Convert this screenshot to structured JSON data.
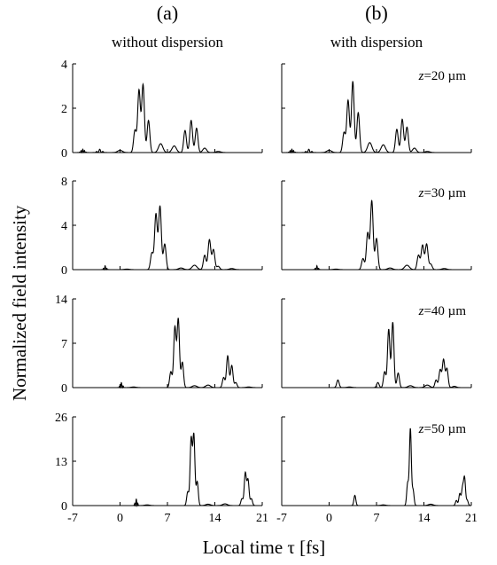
{
  "figure": {
    "columns": [
      {
        "label": "(a)",
        "subtitle": "without dispersion"
      },
      {
        "label": "(b)",
        "subtitle": "with dispersion"
      }
    ],
    "xlabel": "Local time τ [fs]",
    "ylabel": "Normalized field intensity"
  },
  "chart_data": [
    {
      "type": "line",
      "panel": "a1",
      "column": "without dispersion",
      "annotation": "",
      "xlim": [
        -7,
        21
      ],
      "xticks": [],
      "ylim": [
        0,
        4
      ],
      "yticks": [
        0,
        2,
        4
      ],
      "pulses": [
        [
          -5.5,
          0.15,
          0.35,
          3
        ],
        [
          -3,
          0.15,
          0.45,
          2
        ],
        [
          0,
          0.1,
          0.5,
          1
        ],
        [
          2.2,
          1.0,
          0.28,
          1
        ],
        [
          2.8,
          2.8,
          0.28,
          1
        ],
        [
          3.4,
          3.05,
          0.28,
          1
        ],
        [
          4.2,
          1.45,
          0.28,
          1
        ],
        [
          6,
          0.4,
          0.45,
          1
        ],
        [
          8,
          0.3,
          0.45,
          1
        ],
        [
          9.6,
          1.0,
          0.28,
          1
        ],
        [
          10.5,
          1.45,
          0.28,
          1
        ],
        [
          11.3,
          1.1,
          0.28,
          1
        ],
        [
          12.5,
          0.2,
          0.4,
          1
        ],
        [
          14.5,
          0.05,
          0.5,
          1
        ]
      ]
    },
    {
      "type": "line",
      "panel": "b1",
      "column": "with dispersion",
      "annotation": "z=20 µm",
      "xlim": [
        -7,
        21
      ],
      "xticks": [],
      "ylim": [
        0,
        4
      ],
      "yticks": [],
      "pulses": [
        [
          -5.5,
          0.15,
          0.35,
          3
        ],
        [
          -3,
          0.15,
          0.45,
          2
        ],
        [
          0,
          0.1,
          0.5,
          1
        ],
        [
          2.2,
          0.9,
          0.28,
          1
        ],
        [
          2.8,
          2.35,
          0.28,
          1
        ],
        [
          3.5,
          3.2,
          0.28,
          1
        ],
        [
          4.3,
          1.8,
          0.28,
          1
        ],
        [
          6,
          0.45,
          0.45,
          1
        ],
        [
          8,
          0.35,
          0.45,
          1
        ],
        [
          10,
          1.05,
          0.28,
          1
        ],
        [
          10.8,
          1.5,
          0.28,
          1
        ],
        [
          11.5,
          1.15,
          0.28,
          1
        ],
        [
          12.6,
          0.2,
          0.4,
          1
        ],
        [
          14.5,
          0.05,
          0.5,
          1
        ]
      ]
    },
    {
      "type": "line",
      "panel": "a2",
      "column": "without dispersion",
      "annotation": "",
      "xlim": [
        -7,
        21
      ],
      "xticks": [],
      "ylim": [
        0,
        8
      ],
      "yticks": [
        0,
        4,
        8
      ],
      "pulses": [
        [
          -2.2,
          0.35,
          0.25,
          2
        ],
        [
          1,
          0.05,
          0.5,
          1
        ],
        [
          4.7,
          1.5,
          0.28,
          1
        ],
        [
          5.3,
          5.0,
          0.28,
          1
        ],
        [
          5.9,
          5.7,
          0.28,
          1
        ],
        [
          6.6,
          2.3,
          0.28,
          1
        ],
        [
          9,
          0.15,
          0.5,
          1
        ],
        [
          11,
          0.4,
          0.5,
          1
        ],
        [
          12.5,
          1.3,
          0.28,
          1
        ],
        [
          13.2,
          2.7,
          0.28,
          1
        ],
        [
          13.8,
          1.8,
          0.28,
          1
        ],
        [
          14.5,
          0.3,
          0.3,
          1
        ],
        [
          16.5,
          0.1,
          0.5,
          1
        ]
      ]
    },
    {
      "type": "line",
      "panel": "b2",
      "column": "with dispersion",
      "annotation": "z=30 µm",
      "xlim": [
        -7,
        21
      ],
      "xticks": [],
      "ylim": [
        0,
        8
      ],
      "yticks": [],
      "pulses": [
        [
          -1.8,
          0.35,
          0.25,
          2
        ],
        [
          1,
          0.05,
          0.5,
          1
        ],
        [
          5,
          1.0,
          0.28,
          1
        ],
        [
          5.7,
          3.3,
          0.28,
          1
        ],
        [
          6.3,
          6.2,
          0.28,
          1
        ],
        [
          7,
          2.8,
          0.28,
          1
        ],
        [
          9,
          0.15,
          0.5,
          1
        ],
        [
          11.5,
          0.4,
          0.5,
          1
        ],
        [
          13.2,
          1.3,
          0.28,
          1
        ],
        [
          13.8,
          2.2,
          0.28,
          1
        ],
        [
          14.4,
          2.3,
          0.28,
          1
        ],
        [
          15,
          0.5,
          0.3,
          1
        ],
        [
          17,
          0.1,
          0.5,
          1
        ]
      ]
    },
    {
      "type": "line",
      "panel": "a3",
      "column": "without dispersion",
      "annotation": "",
      "xlim": [
        -7,
        21
      ],
      "xticks": [],
      "ylim": [
        0,
        14
      ],
      "yticks": [
        0,
        7,
        14
      ],
      "pulses": [
        [
          0.2,
          0.8,
          0.25,
          2
        ],
        [
          2,
          0.1,
          0.5,
          1
        ],
        [
          7.5,
          2.5,
          0.25,
          1
        ],
        [
          8.1,
          9.5,
          0.25,
          1
        ],
        [
          8.6,
          10.8,
          0.25,
          1
        ],
        [
          9.2,
          4.0,
          0.25,
          1
        ],
        [
          11,
          0.3,
          0.5,
          1
        ],
        [
          13,
          0.4,
          0.5,
          1
        ],
        [
          15.3,
          1.6,
          0.25,
          1
        ],
        [
          15.9,
          5.0,
          0.25,
          1
        ],
        [
          16.5,
          3.5,
          0.25,
          1
        ],
        [
          17.1,
          0.8,
          0.25,
          1
        ],
        [
          19,
          0.1,
          0.5,
          1
        ]
      ]
    },
    {
      "type": "line",
      "panel": "b3",
      "column": "with dispersion",
      "annotation": "z=40 µm",
      "xlim": [
        -7,
        21
      ],
      "xticks": [],
      "ylim": [
        0,
        14
      ],
      "yticks": [],
      "pulses": [
        [
          1.3,
          1.2,
          0.25,
          1
        ],
        [
          3,
          0.1,
          0.5,
          1
        ],
        [
          7.2,
          0.8,
          0.25,
          1
        ],
        [
          8.2,
          2.5,
          0.25,
          1
        ],
        [
          8.8,
          9.2,
          0.25,
          1
        ],
        [
          9.4,
          10.3,
          0.25,
          1
        ],
        [
          10.2,
          2.3,
          0.25,
          1
        ],
        [
          12,
          0.3,
          0.5,
          1
        ],
        [
          14.5,
          0.4,
          0.5,
          1
        ],
        [
          15.8,
          1.2,
          0.25,
          1
        ],
        [
          16.4,
          2.8,
          0.25,
          1
        ],
        [
          16.9,
          4.4,
          0.25,
          1
        ],
        [
          17.4,
          3.0,
          0.25,
          1
        ],
        [
          18.5,
          0.2,
          0.4,
          1
        ]
      ]
    },
    {
      "type": "line",
      "panel": "a4",
      "column": "without dispersion",
      "annotation": "",
      "xlim": [
        -7,
        21
      ],
      "xticks": [
        -7,
        0,
        7,
        14,
        21
      ],
      "ylim": [
        0,
        26
      ],
      "yticks": [
        0,
        13,
        26
      ],
      "pulses": [
        [
          2.4,
          2.0,
          0.22,
          2
        ],
        [
          4,
          0.2,
          0.5,
          1
        ],
        [
          10,
          4.0,
          0.22,
          1
        ],
        [
          10.5,
          19.5,
          0.22,
          1
        ],
        [
          10.9,
          20.5,
          0.22,
          1
        ],
        [
          11.4,
          7.0,
          0.22,
          1
        ],
        [
          13,
          0.4,
          0.5,
          1
        ],
        [
          15.5,
          0.5,
          0.5,
          1
        ],
        [
          18,
          2.0,
          0.22,
          1
        ],
        [
          18.5,
          9.5,
          0.22,
          1
        ],
        [
          18.9,
          7.5,
          0.22,
          1
        ],
        [
          19.4,
          2.0,
          0.22,
          1
        ]
      ]
    },
    {
      "type": "line",
      "panel": "b4",
      "column": "with dispersion",
      "annotation": "z=50 µm",
      "xlim": [
        -7,
        21
      ],
      "xticks": [
        -7,
        0,
        7,
        14,
        21
      ],
      "ylim": [
        0,
        26
      ],
      "yticks": [],
      "pulses": [
        [
          3.8,
          3.0,
          0.2,
          1
        ],
        [
          8,
          0.2,
          0.5,
          1
        ],
        [
          11.6,
          6.5,
          0.2,
          1
        ],
        [
          12,
          22.5,
          0.2,
          1
        ],
        [
          12.4,
          4.5,
          0.2,
          1
        ],
        [
          15,
          0.4,
          0.5,
          1
        ],
        [
          18.8,
          1.5,
          0.2,
          1
        ],
        [
          19.3,
          3.5,
          0.2,
          1
        ],
        [
          19.7,
          5.0,
          0.2,
          1
        ],
        [
          20,
          8.0,
          0.2,
          1
        ],
        [
          20.4,
          1.5,
          0.2,
          1
        ]
      ]
    }
  ]
}
